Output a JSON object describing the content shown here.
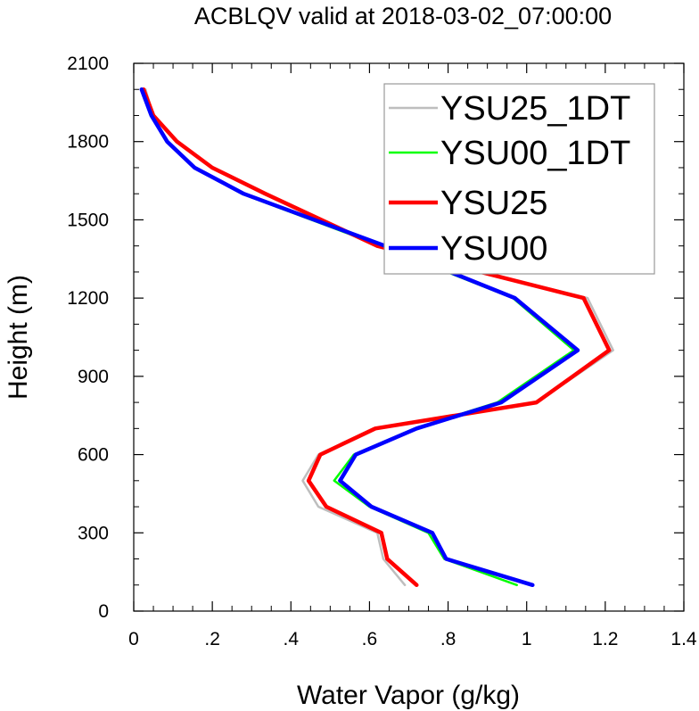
{
  "chart_data": {
    "type": "line",
    "title": "ACBLQV valid at 2018-03-02_07:00:00",
    "xlabel": "Water Vapor (g/kg)",
    "ylabel": "Height (m)",
    "xlim": [
      0,
      1.4
    ],
    "ylim": [
      0,
      2100
    ],
    "x_ticks": [
      {
        "value": 0,
        "label": "0"
      },
      {
        "value": 0.2,
        "label": ".2"
      },
      {
        "value": 0.4,
        "label": ".4"
      },
      {
        "value": 0.6,
        "label": ".6"
      },
      {
        "value": 0.8,
        "label": ".8"
      },
      {
        "value": 1.0,
        "label": "1"
      },
      {
        "value": 1.2,
        "label": "1.2"
      },
      {
        "value": 1.4,
        "label": "1.4"
      }
    ],
    "y_ticks": [
      {
        "value": 0,
        "label": "0"
      },
      {
        "value": 300,
        "label": "300"
      },
      {
        "value": 600,
        "label": "600"
      },
      {
        "value": 900,
        "label": "900"
      },
      {
        "value": 1200,
        "label": "1200"
      },
      {
        "value": 1500,
        "label": "1500"
      },
      {
        "value": 1800,
        "label": "1800"
      },
      {
        "value": 2100,
        "label": "2100"
      }
    ],
    "grid": false,
    "legend_position": "top-right",
    "series": [
      {
        "name": "YSU25_1DT",
        "color": "#bebebe",
        "line_width": "thin",
        "x": [
          0.69,
          0.635,
          0.62,
          0.47,
          0.43,
          0.47,
          0.61,
          1.025,
          1.22,
          1.155,
          0.62,
          0.33,
          0.2,
          0.11,
          0.05,
          0.03
        ],
        "y": [
          100,
          200,
          300,
          400,
          500,
          600,
          700,
          800,
          1000,
          1200,
          1400,
          1600,
          1700,
          1800,
          1900,
          2000
        ]
      },
      {
        "name": "YSU00_1DT",
        "color": "#00ff00",
        "line_width": "thin",
        "x": [
          0.975,
          0.79,
          0.75,
          0.6,
          0.51,
          0.56,
          0.715,
          0.925,
          1.12,
          0.965,
          0.63,
          0.275,
          0.155,
          0.085,
          0.045,
          0.02
        ],
        "y": [
          100,
          200,
          300,
          400,
          500,
          600,
          700,
          800,
          1000,
          1200,
          1400,
          1600,
          1700,
          1800,
          1900,
          2000
        ]
      },
      {
        "name": "YSU25",
        "color": "#ff0000",
        "line_width": "thick",
        "x": [
          0.72,
          0.645,
          0.63,
          0.49,
          0.445,
          0.475,
          0.615,
          1.025,
          1.21,
          1.145,
          0.62,
          0.335,
          0.2,
          0.11,
          0.05,
          0.025
        ],
        "y": [
          100,
          200,
          300,
          400,
          500,
          600,
          700,
          800,
          1000,
          1200,
          1400,
          1600,
          1700,
          1800,
          1900,
          2000
        ]
      },
      {
        "name": "YSU00",
        "color": "#0000ff",
        "line_width": "thick",
        "x": [
          1.015,
          0.795,
          0.76,
          0.605,
          0.525,
          0.565,
          0.72,
          0.935,
          1.13,
          0.97,
          0.64,
          0.28,
          0.155,
          0.085,
          0.045,
          0.02
        ],
        "y": [
          100,
          200,
          300,
          400,
          500,
          600,
          700,
          800,
          1000,
          1200,
          1400,
          1600,
          1700,
          1800,
          1900,
          2000
        ]
      }
    ]
  }
}
